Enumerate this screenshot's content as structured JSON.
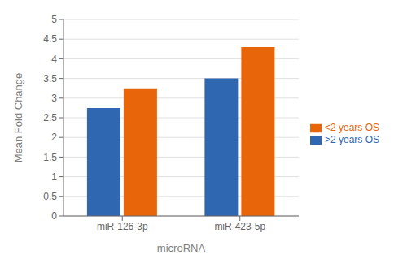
{
  "chart_data": {
    "type": "bar",
    "categories": [
      "miR-126-3p",
      "miR-423-5p"
    ],
    "series": [
      {
        "name": ">2 years OS",
        "color": "#2F67B1",
        "values": [
          2.75,
          3.5
        ]
      },
      {
        "name": "<2 years OS",
        "color": "#E8650A",
        "values": [
          3.25,
          4.3
        ]
      }
    ],
    "xlabel": "microRNA",
    "ylabel": "Mean Fold Change",
    "ylim": [
      0,
      5
    ],
    "yticks": [
      0,
      0.5,
      1,
      1.5,
      2,
      2.5,
      3,
      3.5,
      4,
      4.5,
      5
    ],
    "grid": true,
    "legend": "right"
  }
}
